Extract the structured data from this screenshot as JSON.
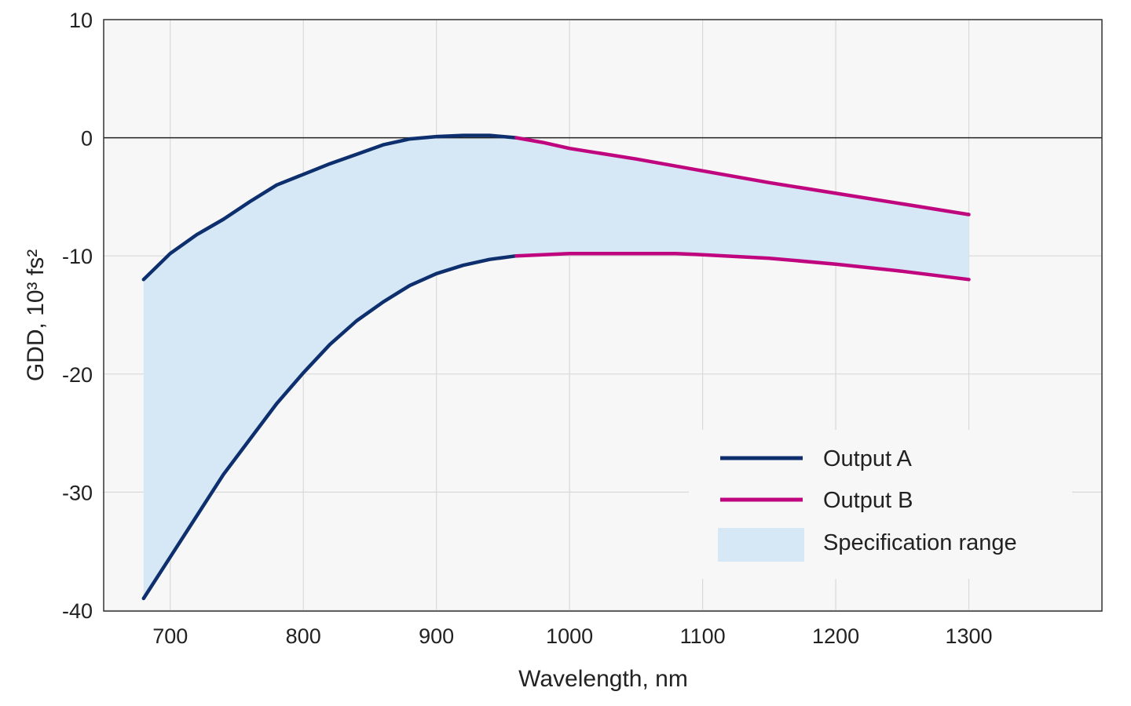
{
  "chart_data": {
    "type": "line",
    "xlabel": "Wavelength, nm",
    "ylabel": "GDD, 10³ fs²",
    "xlim": [
      650,
      1400
    ],
    "ylim": [
      -40,
      10
    ],
    "x_ticks": [
      700,
      800,
      900,
      1000,
      1100,
      1200,
      1300
    ],
    "y_ticks": [
      10,
      0,
      -10,
      -20,
      -30,
      -40
    ],
    "x_tick_labels": [
      "700",
      "800",
      "900",
      "1000",
      "1100",
      "1200",
      "1300"
    ],
    "y_tick_labels": [
      "10",
      "0",
      "-10",
      "-20",
      "-30",
      "-40"
    ],
    "grid": true,
    "zero_line": true,
    "legend_position": "bottom-right",
    "series": [
      {
        "name": "Output A",
        "color": "#0e2f6e",
        "upper": {
          "x": [
            680,
            700,
            720,
            740,
            760,
            780,
            800,
            820,
            840,
            860,
            880,
            900,
            920,
            940,
            960
          ],
          "y": [
            -12,
            -9.8,
            -8.2,
            -6.9,
            -5.4,
            -4.0,
            -3.1,
            -2.2,
            -1.4,
            -0.6,
            -0.1,
            0.1,
            0.2,
            0.2,
            0.0
          ]
        },
        "lower": {
          "x": [
            680,
            700,
            720,
            740,
            760,
            780,
            800,
            820,
            840,
            860,
            880,
            900,
            920,
            940,
            960
          ],
          "y": [
            -39,
            -35.5,
            -32,
            -28.5,
            -25.5,
            -22.5,
            -19.9,
            -17.5,
            -15.5,
            -13.9,
            -12.5,
            -11.5,
            -10.8,
            -10.3,
            -10.0
          ]
        }
      },
      {
        "name": "Output B",
        "color": "#c0067e",
        "upper": {
          "x": [
            960,
            980,
            1000,
            1050,
            1100,
            1150,
            1200,
            1250,
            1300
          ],
          "y": [
            0.0,
            -0.4,
            -0.9,
            -1.8,
            -2.8,
            -3.8,
            -4.7,
            -5.6,
            -6.5
          ]
        },
        "lower": {
          "x": [
            960,
            1000,
            1050,
            1080,
            1100,
            1150,
            1200,
            1250,
            1300
          ],
          "y": [
            -10.0,
            -9.8,
            -9.8,
            -9.8,
            -9.9,
            -10.2,
            -10.7,
            -11.3,
            -12.0
          ]
        }
      }
    ],
    "spec_range": {
      "name": "Specification range",
      "color": "#d6e7f6"
    },
    "colors": {
      "plot_background": "#f7f7f8",
      "grid": "#d9d9d9",
      "axis": "#333333"
    }
  }
}
